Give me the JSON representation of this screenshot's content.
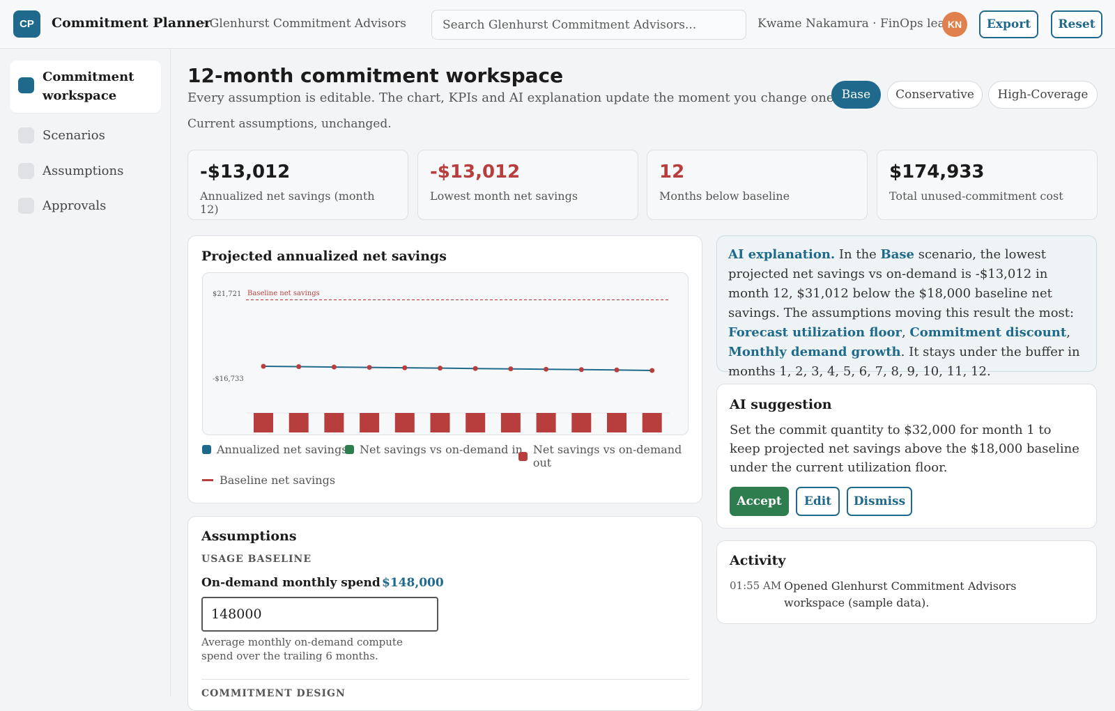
{
  "header": {
    "logo": "CP",
    "app_title": "Commitment Planner",
    "org": "· Glenhurst Commitment Advisors",
    "search_placeholder": "Search Glenhurst Commitment Advisors...",
    "user": "Kwame Nakamura · FinOps lead",
    "avatar": "KN",
    "export_label": "Export",
    "reset_label": "Reset"
  },
  "sidebar": {
    "items": [
      {
        "label": "Commitment workspace",
        "active": true
      },
      {
        "label": "Scenarios",
        "active": false
      },
      {
        "label": "Assumptions",
        "active": false
      },
      {
        "label": "Approvals",
        "active": false
      }
    ]
  },
  "main": {
    "title": "12-month commitment workspace",
    "subtitle": "Every assumption is editable. The chart, KPIs and AI explanation update the moment you change one.",
    "status": "Current assumptions, unchanged.",
    "scenarios": [
      {
        "label": "Base",
        "active": true
      },
      {
        "label": "Conservative",
        "active": false
      },
      {
        "label": "High-Coverage",
        "active": false
      }
    ]
  },
  "kpis": [
    {
      "value": "-$13,012",
      "label": "Annualized net savings (month 12)",
      "negative": false
    },
    {
      "value": "-$13,012",
      "label": "Lowest month net savings",
      "negative": true
    },
    {
      "value": "12",
      "label": "Months below baseline",
      "negative": true
    },
    {
      "value": "$174,933",
      "label": "Total unused-commitment cost",
      "negative": false
    }
  ],
  "chart_card": {
    "title": "Projected annualized net savings",
    "legend": {
      "annualized": "Annualized net savings",
      "in": "Net savings vs on-demand in",
      "out": "Net savings vs on-demand out",
      "baseline": "Baseline net savings"
    }
  },
  "chart_data": {
    "type": "line",
    "y_tick_labels": [
      "$21,721",
      "-$16,733"
    ],
    "baseline_label": "Baseline net savings",
    "baseline_value": 18000,
    "x": [
      1,
      2,
      3,
      4,
      5,
      6,
      7,
      8,
      9,
      10,
      11,
      12
    ],
    "series": [
      {
        "name": "Annualized net savings",
        "values": [
          -11300,
          -11450,
          -11600,
          -11750,
          -11900,
          -12050,
          -12200,
          -12350,
          -12500,
          -12650,
          -12800,
          -13012
        ]
      },
      {
        "name": "Net savings vs on-demand out",
        "values": [
          -13012,
          -13012,
          -13012,
          -13012,
          -13012,
          -13012,
          -13012,
          -13012,
          -13012,
          -13012,
          -13012,
          -13012
        ]
      }
    ],
    "ylim": [
      -16733,
      21721
    ],
    "grid": false,
    "legend_position": "bottom",
    "colors": {
      "line": "#1f6a8c",
      "point": "#b83e3e",
      "bar": "#b83e3e",
      "baseline": "#b83e3e",
      "in": "#2e7d4f"
    }
  },
  "explanation": {
    "lead": "AI explanation.",
    "t1": " In the ",
    "scenario": "Base",
    "t2": " scenario, the lowest projected net savings vs on-demand is -$13,012 in month 12, $31,012 below the $18,000 baseline net savings. The assumptions moving this result the most: ",
    "f1": "Forecast utilization floor",
    "sep1": ", ",
    "f2": "Commitment discount",
    "sep2": ", ",
    "f3": "Monthly demand growth",
    "t3": ". It stays under the buffer in months 1, 2, 3, 4, 5, 6, 7, 8, 9, 10, 11, 12."
  },
  "suggestion": {
    "title": "AI suggestion",
    "text": "Set the commit quantity to $32,000 for month 1 to keep projected net savings above the $18,000 baseline under the current utilization floor.",
    "accept": "Accept",
    "edit": "Edit",
    "dismiss": "Dismiss"
  },
  "activity": {
    "title": "Activity",
    "time": "01:55 AM",
    "text": "Opened Glenhurst Commitment Advisors workspace (sample data)."
  },
  "assumptions": {
    "title": "Assumptions",
    "section1": "USAGE BASELINE",
    "field_label": "On-demand monthly spend",
    "field_value_display": "$148,000",
    "field_value": "148000",
    "field_help": "Average monthly on-demand compute spend over the trailing 6 months.",
    "section2": "COMMITMENT DESIGN"
  },
  "colors": {
    "accent": "#1f6a8c",
    "negative": "#b83e3e",
    "positive": "#2e7d4f"
  }
}
